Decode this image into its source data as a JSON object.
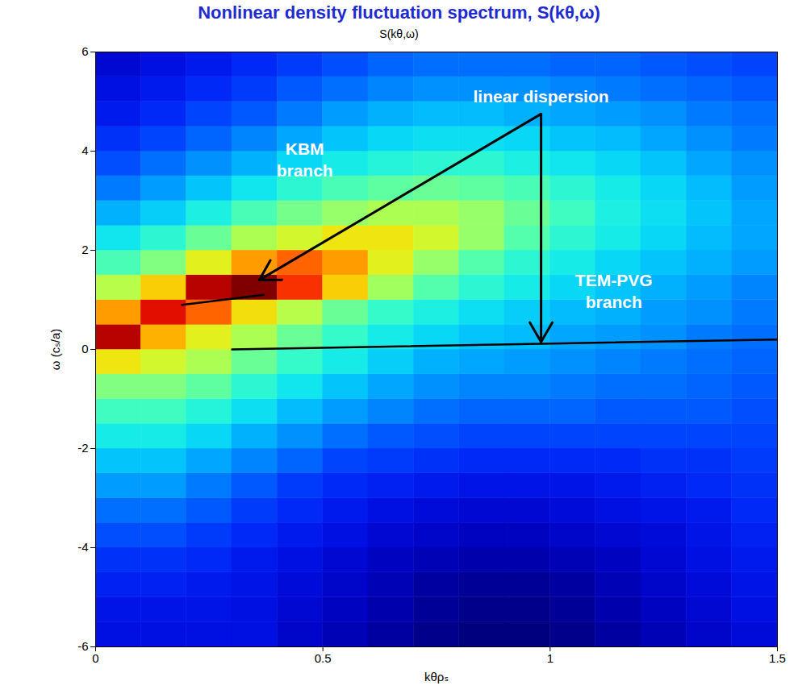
{
  "chart_data": {
    "type": "heatmap",
    "title": "Nonlinear density fluctuation spectrum, S(kθ,ω)",
    "subtitle": "S(kθ,ω)",
    "x_label": "kθρₛ",
    "y_label": "ω (cₛ/a)",
    "xlim": [
      0,
      1.5
    ],
    "ylim": [
      -6,
      6
    ],
    "xticks": [
      0,
      0.5,
      1,
      1.5
    ],
    "yticks": [
      -6,
      -4,
      -2,
      0,
      2,
      4,
      6
    ],
    "x_bins": [
      0,
      0.1,
      0.2,
      0.3,
      0.4,
      0.5,
      0.6,
      0.7,
      0.8,
      0.9,
      1.0,
      1.1,
      1.2,
      1.3,
      1.4,
      1.5
    ],
    "y_bins": [
      -6,
      -5.5,
      -5,
      -4.5,
      -4,
      -3.5,
      -3,
      -2.5,
      -2,
      -1.5,
      -1,
      -0.5,
      0,
      0.5,
      1,
      1.5,
      2,
      2.5,
      3,
      3.5,
      4,
      4.5,
      5,
      5.5,
      6
    ],
    "cells": [
      [
        1.5,
        1.5,
        1.5,
        1.5,
        1.2,
        1,
        0.8,
        0.6,
        0.5,
        0.5,
        0.6,
        0.8,
        1,
        1.2,
        1.4
      ],
      [
        1.6,
        1.6,
        1.6,
        1.5,
        1.3,
        1.1,
        0.9,
        0.7,
        0.6,
        0.6,
        0.7,
        0.9,
        1.1,
        1.3,
        1.5
      ],
      [
        1.8,
        1.8,
        1.7,
        1.6,
        1.4,
        1.2,
        1,
        0.8,
        0.7,
        0.7,
        0.8,
        1,
        1.2,
        1.4,
        1.6
      ],
      [
        2,
        2,
        1.9,
        1.7,
        1.5,
        1.3,
        1.1,
        1,
        0.9,
        0.9,
        1,
        1.1,
        1.3,
        1.5,
        1.7
      ],
      [
        2.3,
        2.3,
        2.1,
        1.9,
        1.7,
        1.5,
        1.3,
        1.2,
        1.1,
        1.1,
        1.2,
        1.3,
        1.4,
        1.6,
        1.8
      ],
      [
        2.6,
        2.6,
        2.4,
        2.1,
        1.9,
        1.7,
        1.5,
        1.4,
        1.3,
        1.3,
        1.4,
        1.5,
        1.6,
        1.7,
        1.9
      ],
      [
        3,
        3,
        2.7,
        2.4,
        2.1,
        1.9,
        1.8,
        1.7,
        1.6,
        1.6,
        1.6,
        1.7,
        1.8,
        1.9,
        2
      ],
      [
        3.4,
        3.4,
        3.1,
        2.8,
        2.5,
        2.2,
        2.1,
        2,
        1.9,
        1.9,
        1.9,
        1.9,
        2,
        2,
        2.1
      ],
      [
        3.9,
        3.9,
        3.6,
        3.2,
        2.9,
        2.6,
        2.4,
        2.3,
        2.2,
        2.2,
        2.2,
        2.2,
        2.2,
        2.2,
        2.2
      ],
      [
        4.4,
        4.4,
        4.1,
        3.7,
        3.3,
        3,
        2.8,
        2.6,
        2.5,
        2.5,
        2.5,
        2.4,
        2.4,
        2.4,
        2.3
      ],
      [
        5,
        5,
        4.7,
        4.2,
        3.8,
        3.4,
        3.1,
        2.9,
        2.8,
        2.8,
        2.7,
        2.6,
        2.6,
        2.5,
        2.4
      ],
      [
        6.2,
        5.8,
        5.4,
        4.8,
        4.3,
        3.9,
        3.5,
        3.2,
        3.1,
        3,
        2.9,
        2.8,
        2.7,
        2.6,
        2.5
      ],
      [
        9,
        6.8,
        6,
        5.4,
        4.8,
        4.3,
        3.9,
        3.6,
        3.4,
        3.3,
        3.1,
        3,
        2.9,
        2.7,
        2.6
      ],
      [
        7,
        8.5,
        7.5,
        6.3,
        5.5,
        4.8,
        4.3,
        4,
        3.7,
        3.5,
        3.3,
        3.2,
        3,
        2.9,
        2.7
      ],
      [
        5.5,
        6.5,
        9,
        9.5,
        8,
        6.5,
        5.3,
        4.6,
        4.2,
        3.9,
        3.6,
        3.4,
        3.2,
        3,
        2.8
      ],
      [
        4.5,
        5,
        6,
        7,
        7.5,
        7,
        6,
        5.2,
        4.6,
        4.2,
        3.9,
        3.6,
        3.4,
        3.2,
        3
      ],
      [
        3.8,
        4.2,
        4.8,
        5.4,
        5.8,
        6.2,
        6.2,
        5.8,
        5.2,
        4.6,
        4.2,
        3.9,
        3.6,
        3.3,
        3.1
      ],
      [
        3.2,
        3.5,
        4,
        4.5,
        4.9,
        5.2,
        5.4,
        5.4,
        5.2,
        4.8,
        4.4,
        4,
        3.7,
        3.4,
        3.1
      ],
      [
        2.7,
        3,
        3.4,
        3.8,
        4.2,
        4.5,
        4.7,
        4.8,
        4.7,
        4.5,
        4.2,
        3.9,
        3.6,
        3.3,
        3
      ],
      [
        2.3,
        2.6,
        2.9,
        3.2,
        3.6,
        3.9,
        4.1,
        4.2,
        4.2,
        4,
        3.8,
        3.6,
        3.4,
        3.1,
        2.9
      ],
      [
        2,
        2.2,
        2.5,
        2.8,
        3.1,
        3.4,
        3.6,
        3.7,
        3.7,
        3.6,
        3.4,
        3.3,
        3.1,
        2.9,
        2.7
      ],
      [
        1.7,
        1.9,
        2.2,
        2.4,
        2.7,
        3,
        3.2,
        3.3,
        3.3,
        3.2,
        3.1,
        3,
        2.9,
        2.7,
        2.6
      ],
      [
        1.5,
        1.7,
        1.9,
        2.1,
        2.4,
        2.6,
        2.8,
        2.9,
        2.9,
        2.9,
        2.8,
        2.7,
        2.6,
        2.5,
        2.4
      ],
      [
        1.3,
        1.5,
        1.7,
        1.9,
        2.1,
        2.3,
        2.5,
        2.6,
        2.6,
        2.6,
        2.5,
        2.5,
        2.4,
        2.3,
        2.2
      ]
    ],
    "lines": [
      {
        "x": [
          0.19,
          0.37
        ],
        "y": [
          0.9,
          1.1
        ],
        "color": "#000000"
      },
      {
        "x": [
          0.3,
          1.5
        ],
        "y": [
          0,
          0.2
        ],
        "color": "#000000"
      }
    ],
    "annotation": {
      "text": "linear dispersion",
      "x": 0.98,
      "y": 5.1,
      "arrows": [
        {
          "x1": 0.98,
          "y1": 4.75,
          "x2": 0.36,
          "y2": 1.4
        },
        {
          "x1": 0.98,
          "y1": 4.75,
          "x2": 0.98,
          "y2": 0.15
        }
      ]
    },
    "branch_labels": [
      {
        "text": "KBM branch",
        "x": 0.46,
        "y": 3.85
      },
      {
        "text": "TEM-PVG branch",
        "x": 1.14,
        "y": 1.2
      }
    ]
  }
}
